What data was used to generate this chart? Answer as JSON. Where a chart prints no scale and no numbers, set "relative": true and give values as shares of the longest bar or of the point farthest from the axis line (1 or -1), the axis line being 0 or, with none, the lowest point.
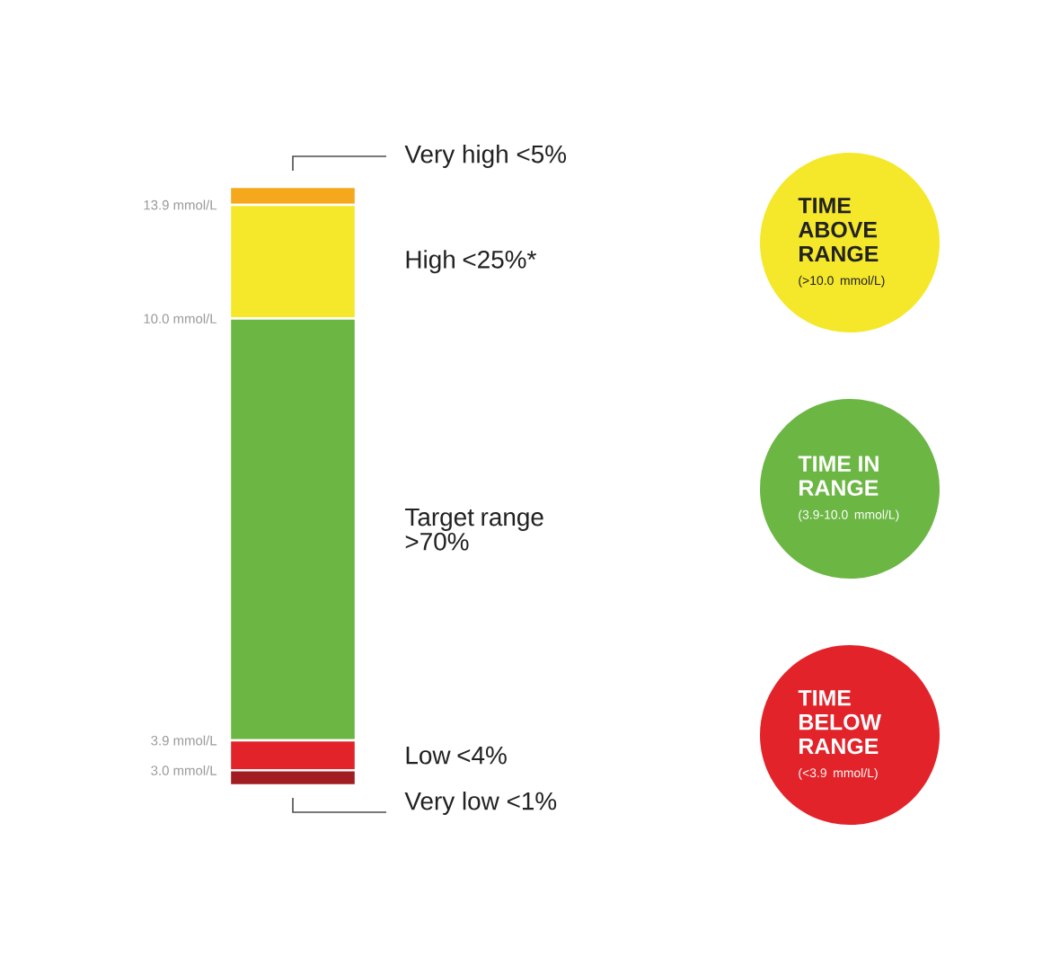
{
  "chart_data": {
    "type": "bar",
    "stacked": true,
    "relative": true,
    "categories": [
      null
    ],
    "series": [
      {
        "name": "Very low <1%",
        "color": "#a11d21",
        "values": [
          0.025
        ]
      },
      {
        "name": "Low <4%",
        "color": "#e2232a",
        "values": [
          0.05
        ]
      },
      {
        "name": "Target range >70%",
        "color": "#6cb644",
        "values": [
          0.705
        ]
      },
      {
        "name": "High <25%*",
        "color": "#f5e82a",
        "values": [
          0.19
        ]
      },
      {
        "name": "Very high <5%",
        "color": "#f6a81c",
        "values": [
          0.03
        ]
      }
    ],
    "annotations": [
      "13.9 mmol/L",
      "10.0 mmol/L",
      "3.9 mmol/L",
      "3.0 mmol/L",
      "TIME ABOVE RANGE",
      "(>10.0 mmol/L)",
      "TIME IN RANGE",
      "(3.9-10.0 mmol/L)",
      "TIME BELOW RANGE",
      "(<3.9 mmol/L)"
    ]
  }
}
